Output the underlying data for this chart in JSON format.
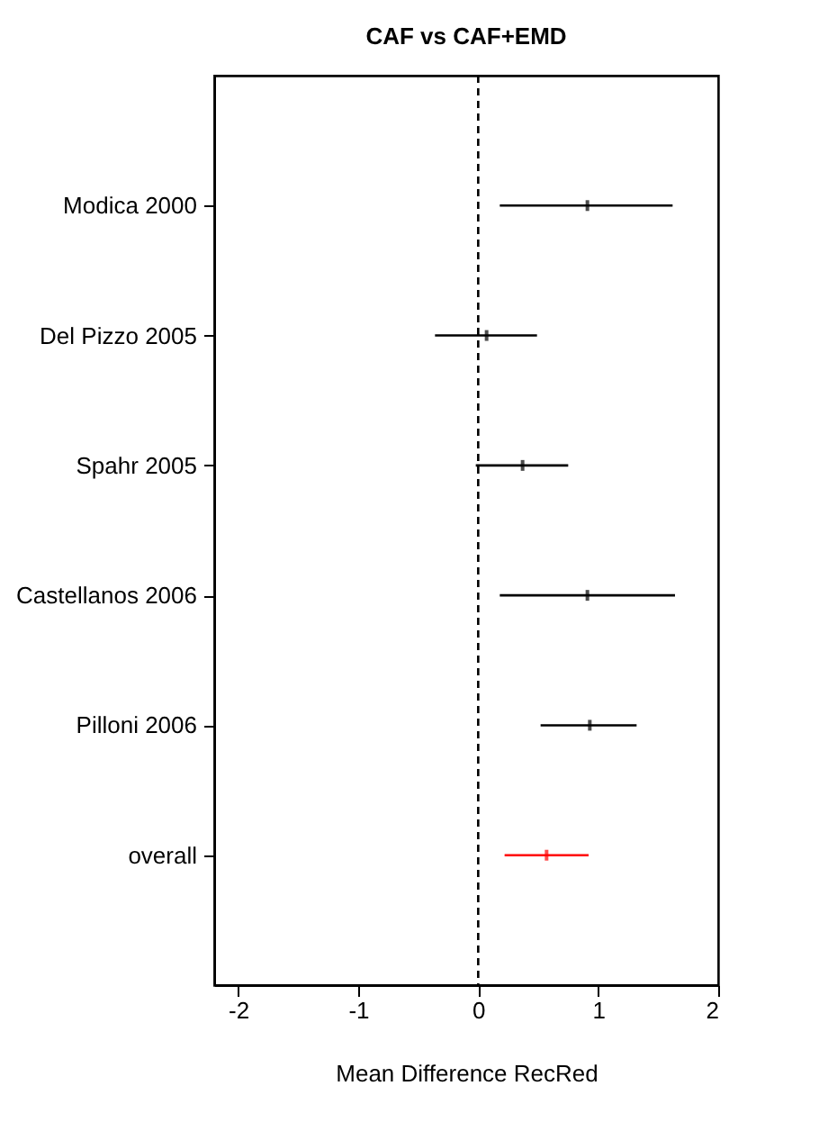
{
  "chart_data": {
    "type": "scatter",
    "title": "CAF vs CAF+EMD",
    "xlabel": "Mean Difference RecRed",
    "categories": [
      "Modica 2000",
      "Del Pizzo 2005",
      "Spahr 2005",
      "Castellanos 2006",
      "Pilloni 2006",
      "overall"
    ],
    "values": [
      0.91,
      0.07,
      0.37,
      0.91,
      0.93,
      0.57
    ],
    "errors": [
      [
        0.18,
        1.62
      ],
      [
        -0.36,
        0.49
      ],
      [
        -0.02,
        0.75
      ],
      [
        0.18,
        1.64
      ],
      [
        0.52,
        1.32
      ],
      [
        0.22,
        0.92
      ]
    ],
    "colors": [
      "#000000",
      "#000000",
      "#000000",
      "#000000",
      "#000000",
      "#ff0000"
    ],
    "orientation": "horizontal",
    "xlim": [
      -2.2,
      2
    ],
    "xticks": [
      -2,
      -1,
      0,
      1,
      2
    ],
    "ref_lines": [
      {
        "axis": "x",
        "value": 0,
        "line_style": "dashed",
        "color": "#000000"
      }
    ],
    "grid": false,
    "legend": false
  }
}
